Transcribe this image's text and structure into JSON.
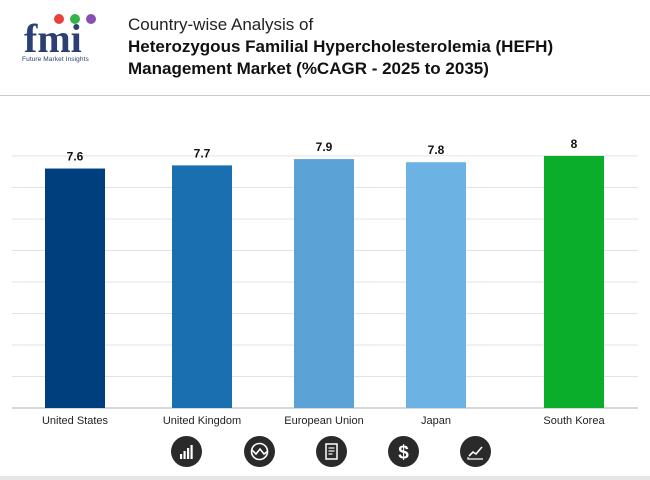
{
  "header": {
    "logo_text": "fmi",
    "logo_subtitle": "Future Market Insights",
    "title": "Country-wise Analysis of",
    "subtitle_line1": "Heterozygous Familial Hypercholesterolemia (HEFH)",
    "subtitle_line2": "Management Market (%CAGR - 2025 to 2035)"
  },
  "chart_data": {
    "type": "bar",
    "categories": [
      "United States",
      "United Kingdom",
      "European Union",
      "Japan",
      "South Korea"
    ],
    "values": [
      7.6,
      7.7,
      7.9,
      7.8,
      8
    ],
    "value_labels": [
      "7.6",
      "7.7",
      "7.9",
      "7.8",
      "8"
    ],
    "bar_colors": [
      "#003f7d",
      "#1a6fb0",
      "#5ba2d6",
      "#6cb3e3",
      "#0aae2a"
    ],
    "ylim": [
      0,
      8.95
    ],
    "gridlines": [
      0,
      1,
      2,
      3,
      4,
      5,
      6,
      7,
      8
    ],
    "grid": true,
    "legend": "none"
  },
  "footer_icons": [
    "bar-growth-icon",
    "trend-circle-icon",
    "report-document-icon",
    "dollar-icon",
    "line-chart-icon"
  ],
  "colors": {
    "text_dark": "#111111",
    "grid": "#e3e3e3",
    "icon_bg": "#2a2a2a"
  }
}
